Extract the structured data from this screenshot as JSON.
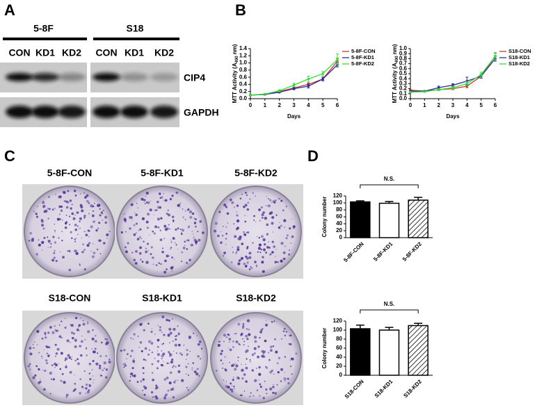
{
  "panel_labels": [
    "A",
    "B",
    "C",
    "D"
  ],
  "blot": {
    "groups": [
      {
        "name": "5-8F",
        "lanes": [
          "CON",
          "KD1",
          "KD2"
        ]
      },
      {
        "name": "S18",
        "lanes": [
          "CON",
          "KD1",
          "KD2"
        ]
      }
    ],
    "rows": [
      "CIP4",
      "GAPDH"
    ]
  },
  "plates": [
    [
      "5-8F-CON",
      "5-8F-KD1",
      "5-8F-KD2"
    ],
    [
      "S18-CON",
      "S18-KD1",
      "S18-KD2"
    ]
  ],
  "chart_data": [
    {
      "type": "line",
      "xlabel": "Days",
      "ylabel": "MTT Activity (A",
      "ylabel_sub": "490",
      "ylabel_end": " nm)",
      "x": [
        0,
        1,
        2,
        3,
        4,
        5,
        6
      ],
      "xlim": [
        0,
        6
      ],
      "xticks": [
        0,
        1,
        2,
        3,
        4,
        5,
        6
      ],
      "ylim": [
        0,
        1.4
      ],
      "yticks": [
        {
          "value": 0,
          "label": "0.0"
        },
        0.2,
        0.4,
        0.6,
        0.8,
        {
          "value": 1,
          "label": "1.0"
        },
        1.2,
        1.4
      ],
      "legend": "upper right",
      "series": [
        {
          "name": "5-8F-CON",
          "color": "#c0392b",
          "values": [
            0.1,
            0.12,
            0.2,
            0.3,
            0.4,
            0.55,
            1.05
          ],
          "errors": [
            0.01,
            0.01,
            0.02,
            0.03,
            0.04,
            0.05,
            0.08
          ]
        },
        {
          "name": "5-8F-KD1",
          "color": "#2c2c9c",
          "values": [
            0.1,
            0.12,
            0.18,
            0.28,
            0.35,
            0.55,
            0.95
          ],
          "errors": [
            0.01,
            0.01,
            0.02,
            0.03,
            0.05,
            0.05,
            0.06
          ]
        },
        {
          "name": "5-8F-KD2",
          "color": "#33dd33",
          "values": [
            0.1,
            0.13,
            0.22,
            0.38,
            0.55,
            0.7,
            1.1
          ],
          "errors": [
            0.01,
            0.01,
            0.03,
            0.05,
            0.08,
            0.06,
            0.15
          ]
        }
      ]
    },
    {
      "type": "line",
      "xlabel": "Days",
      "ylabel": "MTT Activity (A",
      "ylabel_sub": "490",
      "ylabel_end": " nm)",
      "x": [
        0,
        1,
        2,
        3,
        4,
        5,
        6
      ],
      "xlim": [
        0,
        6
      ],
      "xticks": [
        0,
        1,
        2,
        3,
        4,
        5,
        6
      ],
      "ylim": [
        0,
        1
      ],
      "yticks": [
        {
          "value": 0,
          "label": "0.0"
        },
        0.1,
        0.2,
        0.3,
        0.4,
        0.5,
        0.6,
        0.7,
        0.8,
        0.9,
        {
          "value": 1,
          "label": "1.0"
        }
      ],
      "legend": "upper right",
      "series": [
        {
          "name": "S18-CON",
          "color": "#c0392b",
          "values": [
            0.17,
            0.15,
            0.18,
            0.2,
            0.25,
            0.45,
            0.85
          ],
          "errors": [
            0.01,
            0.01,
            0.02,
            0.02,
            0.03,
            0.04,
            0.06
          ]
        },
        {
          "name": "S18-KD1",
          "color": "#2c2c9c",
          "values": [
            0.15,
            0.15,
            0.22,
            0.27,
            0.35,
            0.45,
            0.8
          ],
          "errors": [
            0.01,
            0.01,
            0.03,
            0.03,
            0.08,
            0.04,
            0.05
          ]
        },
        {
          "name": "S18-KD2",
          "color": "#33dd33",
          "values": [
            0.13,
            0.14,
            0.18,
            0.22,
            0.3,
            0.48,
            0.85
          ],
          "errors": [
            0.01,
            0.01,
            0.02,
            0.03,
            0.04,
            0.05,
            0.07
          ]
        }
      ]
    },
    {
      "type": "bar",
      "ylabel": "Colony number",
      "annotation": "N.S.",
      "categories": [
        "5-8F-CON",
        "5-8F-KD1",
        "5-8F-KD2"
      ],
      "values": [
        103,
        99,
        108
      ],
      "errors": [
        3,
        5,
        8
      ],
      "colors": [
        "#000000",
        "#ffffff",
        "#ffffff"
      ],
      "hatch": [
        false,
        false,
        true
      ],
      "ylim": [
        0,
        120
      ],
      "yticks": [
        0,
        20,
        40,
        60,
        80,
        100,
        120
      ]
    },
    {
      "type": "bar",
      "ylabel": "Colony number",
      "annotation": "N.S.",
      "categories": [
        "S18-CON",
        "S18-KD1",
        "S18-KD2"
      ],
      "values": [
        103,
        100,
        110
      ],
      "errors": [
        8,
        6,
        5
      ],
      "colors": [
        "#000000",
        "#ffffff",
        "#ffffff"
      ],
      "hatch": [
        false,
        false,
        true
      ],
      "ylim": [
        0,
        120
      ],
      "yticks": [
        0,
        20,
        40,
        60,
        80,
        100,
        120
      ]
    }
  ]
}
